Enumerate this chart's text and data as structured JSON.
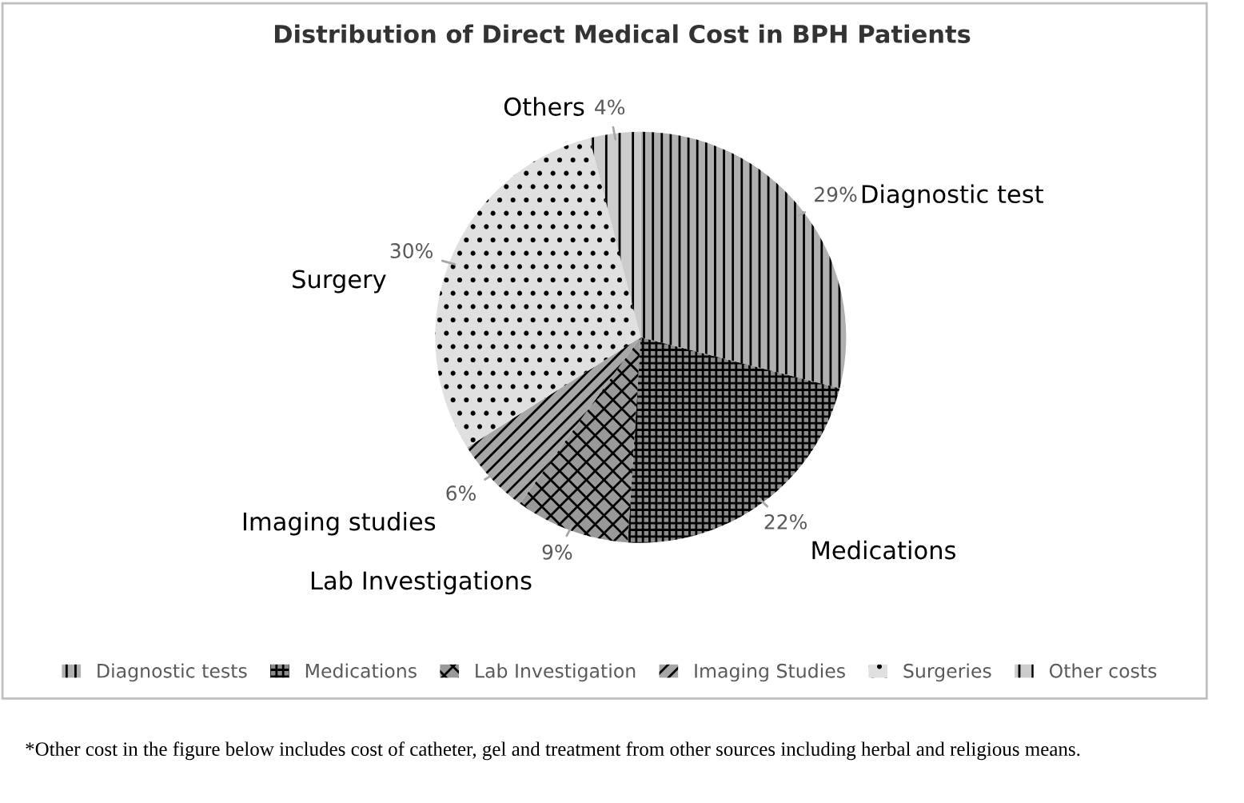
{
  "chart_data": {
    "type": "pie",
    "title": "Distribution of Direct Medical Cost in BPH Patients",
    "categories": [
      "Diagnostic tests",
      "Medications",
      "Lab Investigation",
      "Imaging Studies",
      "Surgeries",
      "Other costs"
    ],
    "values": [
      29,
      22,
      9,
      6,
      30,
      4
    ],
    "value_labels": [
      "29%",
      "22%",
      "9%",
      "6%",
      "30%",
      "4%"
    ],
    "colors": [
      "#b0b0b0",
      "#8c8c8c",
      "#999999",
      "#a6a6a6",
      "#e0e0e0",
      "#cccccc"
    ],
    "legend": "bottom",
    "annotations": [
      "Diagnostic test",
      "Medications",
      "Lab Investigations",
      "Imaging studies",
      "Surgery",
      "Others",
      "*Other cost in the figure below includes cost of catheter, gel and treatment from other sources including herbal and religious means."
    ]
  }
}
